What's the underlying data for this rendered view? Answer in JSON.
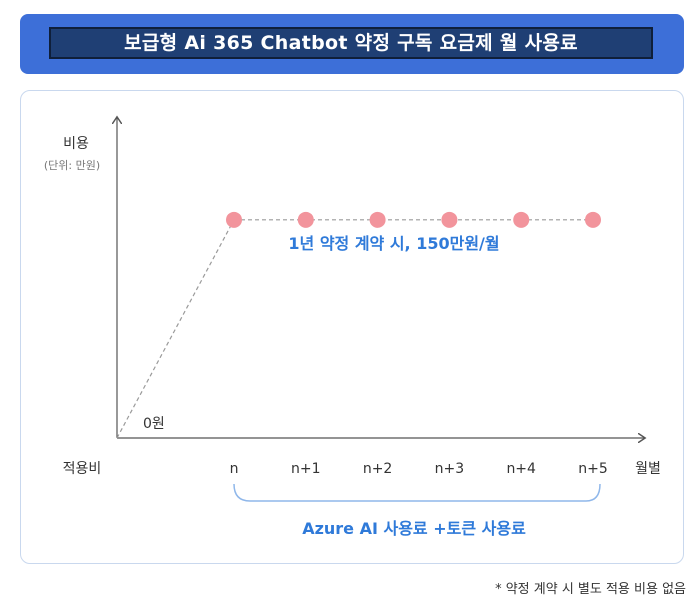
{
  "title": "보급형 Ai 365 Chatbot 약정 구독 요금제 월 사용료",
  "chart_data": {
    "type": "line",
    "ylabel": "비용",
    "yunit": "(단위: 만원)",
    "xlabel": "월별",
    "origin_label": "0원",
    "setup_label": "적용비",
    "categories": [
      "n",
      "n+1",
      "n+2",
      "n+3",
      "n+4",
      "n+5"
    ],
    "series": [
      {
        "values": [
          150,
          150,
          150,
          150,
          150,
          150
        ]
      }
    ],
    "ylim": [
      0,
      220
    ],
    "annotation": "1년 약정 계약 시, 150만원/월",
    "bracket_label": "Azure AI 사용료 +토큰 사용료",
    "grid": false
  },
  "footnote": "* 약정 계약 시 별도 적용 비용 없음",
  "colors": {
    "banner": "#3d6fd8",
    "banner_inner": "#1f3f74",
    "marker": "#f2949c",
    "accent_text": "#2f7ad9",
    "axis": "#555555",
    "dashed": "#9a9a9a",
    "bracket": "#8fb7ea"
  }
}
